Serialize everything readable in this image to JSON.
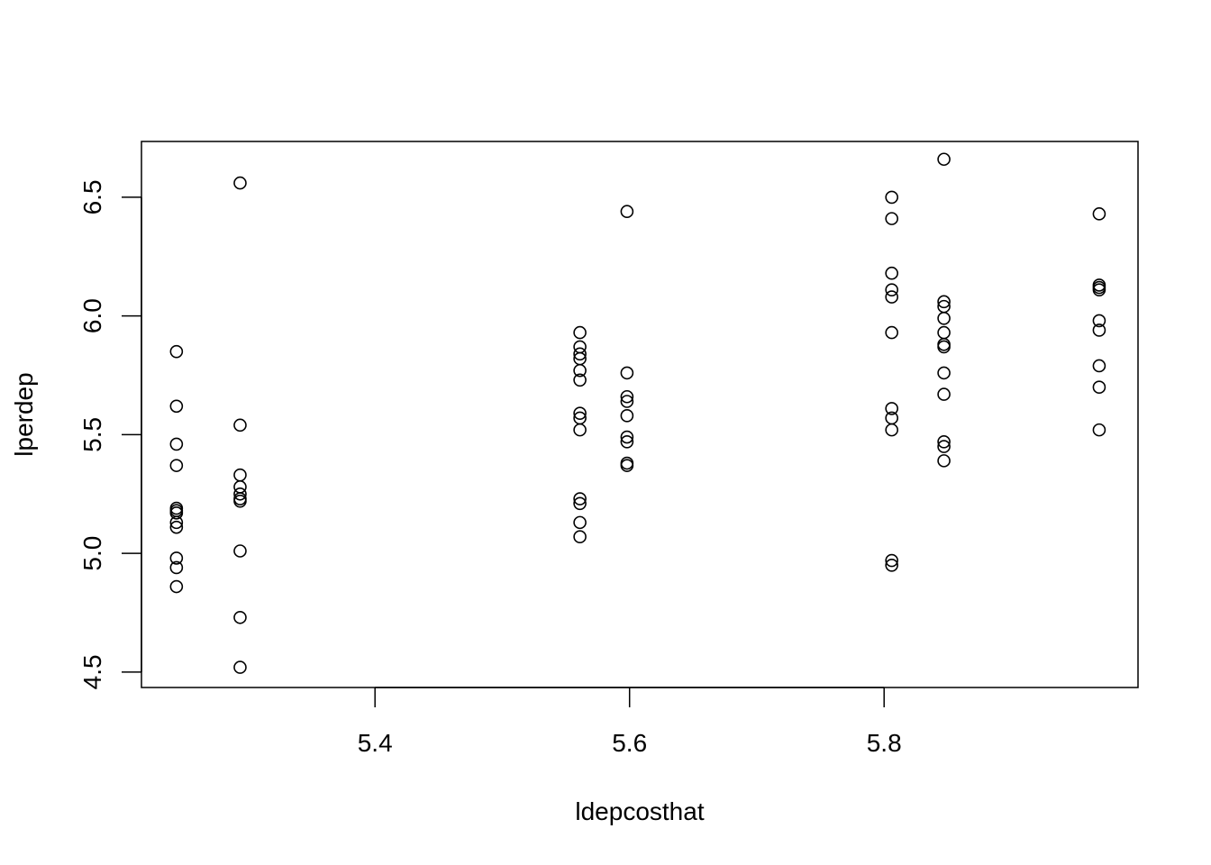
{
  "chart_data": {
    "type": "scatter",
    "xlabel": "ldepcosthat",
    "ylabel": "lperdep",
    "xlim": [
      5.2165,
      5.9995
    ],
    "ylim": [
      4.435,
      6.735
    ],
    "x_ticks": [
      5.4,
      5.6,
      5.8
    ],
    "x_tick_labels": [
      "5.4",
      "5.6",
      "5.8"
    ],
    "y_ticks": [
      4.5,
      5.0,
      5.5,
      6.0,
      6.5
    ],
    "y_tick_labels": [
      "4.5",
      "5.0",
      "5.5",
      "6.0",
      "6.5"
    ],
    "grid": false,
    "marker": "open-circle",
    "points": [
      {
        "x": 5.244,
        "y": 5.85
      },
      {
        "x": 5.244,
        "y": 5.62
      },
      {
        "x": 5.244,
        "y": 5.46
      },
      {
        "x": 5.244,
        "y": 5.37
      },
      {
        "x": 5.244,
        "y": 5.19
      },
      {
        "x": 5.244,
        "y": 5.18
      },
      {
        "x": 5.244,
        "y": 5.17
      },
      {
        "x": 5.244,
        "y": 5.13
      },
      {
        "x": 5.244,
        "y": 5.11
      },
      {
        "x": 5.244,
        "y": 4.98
      },
      {
        "x": 5.244,
        "y": 4.94
      },
      {
        "x": 5.244,
        "y": 4.86
      },
      {
        "x": 5.294,
        "y": 6.56
      },
      {
        "x": 5.294,
        "y": 5.54
      },
      {
        "x": 5.294,
        "y": 5.33
      },
      {
        "x": 5.294,
        "y": 5.28
      },
      {
        "x": 5.294,
        "y": 5.25
      },
      {
        "x": 5.294,
        "y": 5.23
      },
      {
        "x": 5.294,
        "y": 5.22
      },
      {
        "x": 5.294,
        "y": 5.01
      },
      {
        "x": 5.294,
        "y": 4.73
      },
      {
        "x": 5.294,
        "y": 4.52
      },
      {
        "x": 5.561,
        "y": 5.93
      },
      {
        "x": 5.561,
        "y": 5.87
      },
      {
        "x": 5.561,
        "y": 5.84
      },
      {
        "x": 5.561,
        "y": 5.82
      },
      {
        "x": 5.561,
        "y": 5.77
      },
      {
        "x": 5.561,
        "y": 5.73
      },
      {
        "x": 5.561,
        "y": 5.59
      },
      {
        "x": 5.561,
        "y": 5.57
      },
      {
        "x": 5.561,
        "y": 5.52
      },
      {
        "x": 5.561,
        "y": 5.23
      },
      {
        "x": 5.561,
        "y": 5.21
      },
      {
        "x": 5.561,
        "y": 5.13
      },
      {
        "x": 5.561,
        "y": 5.07
      },
      {
        "x": 5.598,
        "y": 6.44
      },
      {
        "x": 5.598,
        "y": 5.76
      },
      {
        "x": 5.598,
        "y": 5.66
      },
      {
        "x": 5.598,
        "y": 5.64
      },
      {
        "x": 5.598,
        "y": 5.58
      },
      {
        "x": 5.598,
        "y": 5.49
      },
      {
        "x": 5.598,
        "y": 5.47
      },
      {
        "x": 5.598,
        "y": 5.38
      },
      {
        "x": 5.598,
        "y": 5.37
      },
      {
        "x": 5.806,
        "y": 6.5
      },
      {
        "x": 5.806,
        "y": 6.41
      },
      {
        "x": 5.806,
        "y": 6.18
      },
      {
        "x": 5.806,
        "y": 6.11
      },
      {
        "x": 5.806,
        "y": 6.08
      },
      {
        "x": 5.806,
        "y": 5.93
      },
      {
        "x": 5.806,
        "y": 5.61
      },
      {
        "x": 5.806,
        "y": 5.57
      },
      {
        "x": 5.806,
        "y": 5.52
      },
      {
        "x": 5.806,
        "y": 4.97
      },
      {
        "x": 5.806,
        "y": 4.95
      },
      {
        "x": 5.847,
        "y": 6.66
      },
      {
        "x": 5.847,
        "y": 6.06
      },
      {
        "x": 5.847,
        "y": 6.04
      },
      {
        "x": 5.847,
        "y": 5.99
      },
      {
        "x": 5.847,
        "y": 5.93
      },
      {
        "x": 5.847,
        "y": 5.88
      },
      {
        "x": 5.847,
        "y": 5.87
      },
      {
        "x": 5.847,
        "y": 5.76
      },
      {
        "x": 5.847,
        "y": 5.67
      },
      {
        "x": 5.847,
        "y": 5.47
      },
      {
        "x": 5.847,
        "y": 5.45
      },
      {
        "x": 5.847,
        "y": 5.39
      },
      {
        "x": 5.969,
        "y": 6.43
      },
      {
        "x": 5.969,
        "y": 6.13
      },
      {
        "x": 5.969,
        "y": 6.12
      },
      {
        "x": 5.969,
        "y": 6.11
      },
      {
        "x": 5.969,
        "y": 5.98
      },
      {
        "x": 5.969,
        "y": 5.94
      },
      {
        "x": 5.969,
        "y": 5.79
      },
      {
        "x": 5.969,
        "y": 5.7
      },
      {
        "x": 5.969,
        "y": 5.52
      }
    ]
  }
}
